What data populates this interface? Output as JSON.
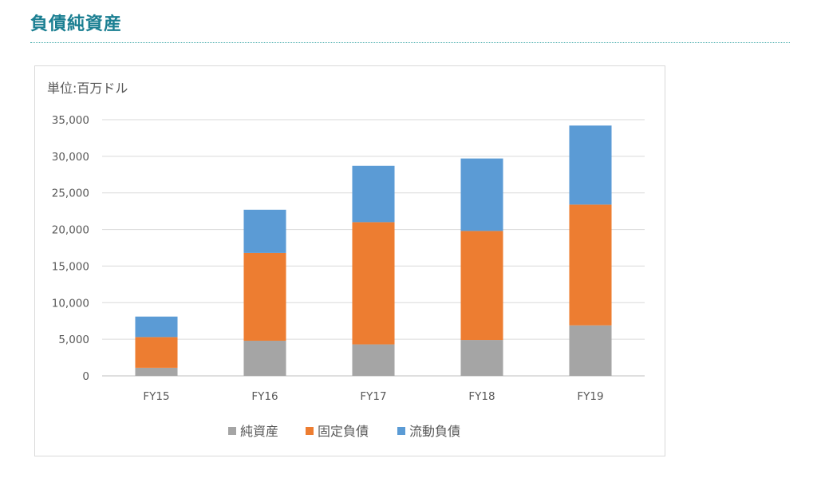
{
  "heading": "負債純資産",
  "chart_data": {
    "type": "bar",
    "stacked": true,
    "unit_label": "単位:百万ドル",
    "categories": [
      "FY15",
      "FY16",
      "FY17",
      "FY18",
      "FY19"
    ],
    "series": [
      {
        "name": "純資産",
        "color": "#a5a5a5",
        "values": [
          1100,
          4800,
          4300,
          4900,
          6900
        ]
      },
      {
        "name": "固定負債",
        "color": "#ed7d31",
        "values": [
          4200,
          12000,
          16700,
          14900,
          16500
        ]
      },
      {
        "name": "流動負債",
        "color": "#5b9bd5",
        "values": [
          2800,
          5900,
          7700,
          9900,
          10800
        ]
      }
    ],
    "ylim": [
      0,
      35000
    ],
    "yticks": [
      0,
      5000,
      10000,
      15000,
      20000,
      25000,
      30000,
      35000
    ],
    "ytick_labels": [
      "0",
      "5,000",
      "10,000",
      "15,000",
      "20,000",
      "25,000",
      "30,000",
      "35,000"
    ],
    "grid": true,
    "legend": "bottom"
  }
}
